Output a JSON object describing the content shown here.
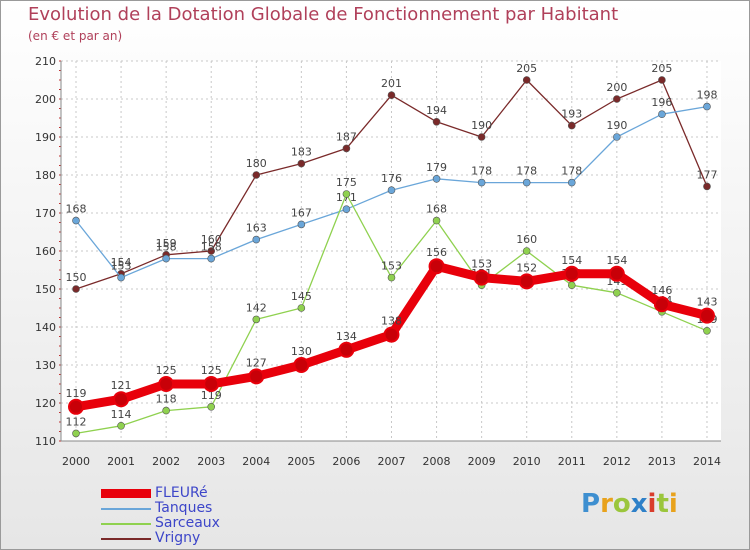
{
  "header": {
    "title": "Evolution de la Dotation Globale de Fonctionnement par Habitant",
    "subtitle": "(en € et par an)"
  },
  "logo": {
    "letters": [
      "P",
      "r",
      "o",
      "x",
      "i",
      "t",
      "i"
    ]
  },
  "chart_data": {
    "type": "line",
    "title": "Evolution de la Dotation Globale de Fonctionnement par Habitant",
    "subtitle": "(en € et par an)",
    "xlabel": "",
    "ylabel": "",
    "categories": [
      "2000",
      "2001",
      "2002",
      "2003",
      "2004",
      "2005",
      "2006",
      "2007",
      "2008",
      "2009",
      "2010",
      "2011",
      "2012",
      "2013",
      "2014"
    ],
    "ylim": [
      110,
      210
    ],
    "yticks": [
      110,
      120,
      130,
      140,
      150,
      160,
      170,
      180,
      190,
      200,
      210
    ],
    "grid": true,
    "legend_position": "bottom-left",
    "series": [
      {
        "name": "FLEURé",
        "color": "#e8000b",
        "values": [
          119,
          121,
          125,
          125,
          127,
          130,
          134,
          138,
          156,
          153,
          152,
          154,
          154,
          146,
          143
        ]
      },
      {
        "name": "Tanques",
        "color": "#6aa6d9",
        "values": [
          168,
          153,
          158,
          158,
          163,
          167,
          171,
          176,
          179,
          178,
          178,
          178,
          190,
          196,
          198
        ]
      },
      {
        "name": "Sarceaux",
        "color": "#8fd14f",
        "values": [
          112,
          114,
          118,
          119,
          142,
          145,
          175,
          153,
          168,
          151,
          160,
          151,
          149,
          144,
          139
        ]
      },
      {
        "name": "Vrigny",
        "color": "#7a2a2a",
        "values": [
          150,
          154,
          159,
          160,
          180,
          183,
          187,
          201,
          194,
          190,
          205,
          193,
          200,
          205,
          177
        ]
      }
    ]
  }
}
